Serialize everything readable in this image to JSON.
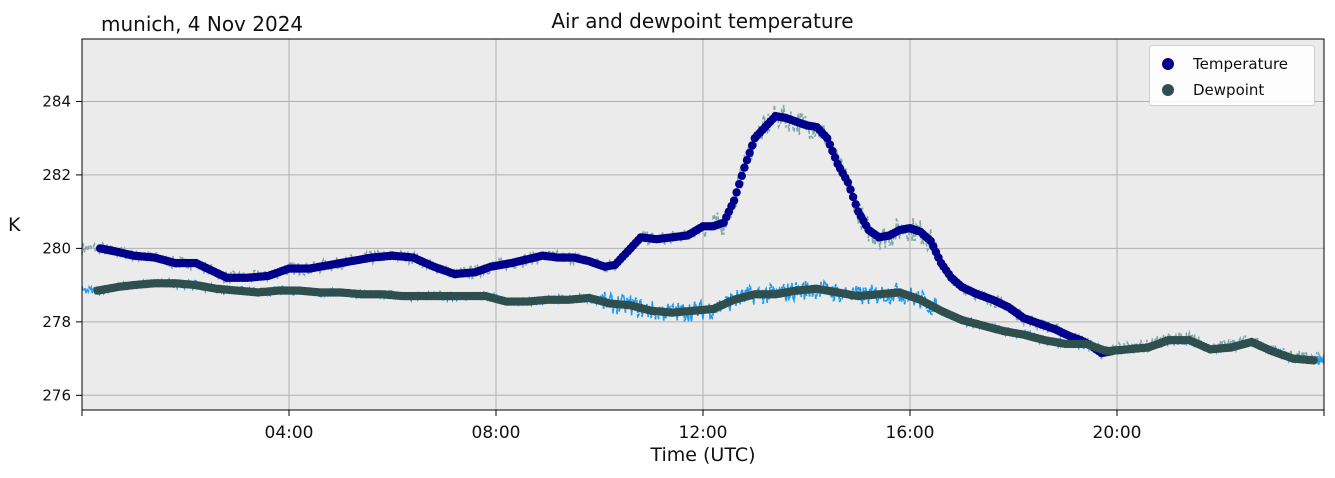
{
  "corner_label": "munich, 4 Nov 2024",
  "chart_data": {
    "type": "line",
    "title": "Air and dewpoint temperature",
    "xlabel": "Time (UTC)",
    "ylabel": "K",
    "x_unit": "hours UTC",
    "xlim": [
      0,
      24
    ],
    "ylim": [
      275.6,
      285.7
    ],
    "x_ticks": [
      4,
      8,
      12,
      16,
      20
    ],
    "x_tick_labels": [
      "04:00",
      "08:00",
      "12:00",
      "16:00",
      "20:00"
    ],
    "y_ticks": [
      276,
      278,
      280,
      282,
      284
    ],
    "y_tick_labels": [
      "276",
      "278",
      "280",
      "282",
      "284"
    ],
    "grid": true,
    "background_color": "#ebebeb",
    "legend_position": "top-right",
    "series": [
      {
        "name": "Temperature",
        "style": "thick line of dots",
        "color": "#00008b",
        "raw_color": "#7fa8a8",
        "x": [
          0.35,
          0.7,
          1.0,
          1.4,
          1.8,
          2.2,
          2.5,
          2.8,
          3.2,
          3.6,
          4.0,
          4.4,
          4.8,
          5.2,
          5.6,
          6.0,
          6.4,
          6.8,
          7.2,
          7.6,
          7.9,
          8.3,
          8.6,
          8.9,
          9.2,
          9.5,
          9.8,
          10.1,
          10.3,
          10.6,
          10.8,
          11.1,
          11.4,
          11.7,
          12.0,
          12.2,
          12.4,
          12.6,
          12.8,
          13.0,
          13.2,
          13.4,
          13.6,
          13.8,
          14.0,
          14.2,
          14.4,
          14.6,
          14.8,
          15.0,
          15.2,
          15.4,
          15.6,
          15.8,
          16.0,
          16.2,
          16.4,
          16.6,
          16.8,
          17.0,
          17.3,
          17.6,
          17.9,
          18.2,
          18.5,
          18.8,
          19.1,
          19.3,
          19.5,
          19.7,
          19.9
        ],
        "y": [
          280.0,
          279.9,
          279.8,
          279.75,
          279.6,
          279.6,
          279.4,
          279.2,
          279.2,
          279.25,
          279.45,
          279.45,
          279.55,
          279.65,
          279.75,
          279.8,
          279.75,
          279.5,
          279.3,
          279.35,
          279.5,
          279.6,
          279.7,
          279.8,
          279.75,
          279.75,
          279.65,
          279.5,
          279.55,
          280.0,
          280.3,
          280.25,
          280.3,
          280.35,
          280.6,
          280.6,
          280.7,
          281.3,
          282.2,
          283.0,
          283.3,
          283.6,
          283.55,
          283.45,
          283.35,
          283.3,
          283.0,
          282.3,
          281.8,
          281.0,
          280.5,
          280.3,
          280.35,
          280.5,
          280.55,
          280.45,
          280.2,
          279.6,
          279.2,
          278.95,
          278.75,
          278.6,
          278.4,
          278.1,
          277.95,
          277.8,
          277.6,
          277.5,
          277.35,
          277.15,
          277.2
        ]
      },
      {
        "name": "Dewpoint",
        "style": "thick line of dots",
        "color": "#2f4f4f",
        "raw_color": "#1e9bf0",
        "x": [
          0.3,
          0.7,
          1.0,
          1.4,
          1.8,
          2.2,
          2.6,
          3.0,
          3.4,
          3.8,
          4.2,
          4.6,
          5.0,
          5.4,
          5.8,
          6.2,
          6.6,
          7.0,
          7.4,
          7.8,
          8.2,
          8.6,
          9.0,
          9.4,
          9.8,
          10.2,
          10.6,
          11.0,
          11.4,
          11.8,
          12.2,
          12.6,
          13.0,
          13.4,
          13.8,
          14.2,
          14.6,
          15.0,
          15.4,
          15.8,
          16.2,
          16.6,
          17.0,
          17.4,
          17.8,
          18.2,
          18.6,
          19.0,
          19.4,
          19.8,
          20.2,
          20.6,
          21.0,
          21.4,
          21.8,
          22.2,
          22.6,
          23.0,
          23.4,
          23.8
        ],
        "y": [
          278.85,
          278.95,
          279.0,
          279.05,
          279.05,
          279.0,
          278.9,
          278.85,
          278.8,
          278.85,
          278.85,
          278.8,
          278.8,
          278.75,
          278.75,
          278.7,
          278.7,
          278.7,
          278.7,
          278.7,
          278.55,
          278.55,
          278.6,
          278.6,
          278.65,
          278.5,
          278.45,
          278.3,
          278.25,
          278.3,
          278.35,
          278.6,
          278.75,
          278.75,
          278.85,
          278.9,
          278.8,
          278.7,
          278.75,
          278.8,
          278.6,
          278.3,
          278.05,
          277.9,
          277.75,
          277.65,
          277.5,
          277.4,
          277.4,
          277.2,
          277.25,
          277.3,
          277.5,
          277.5,
          277.25,
          277.3,
          277.45,
          277.2,
          277.0,
          276.95
        ]
      }
    ]
  }
}
